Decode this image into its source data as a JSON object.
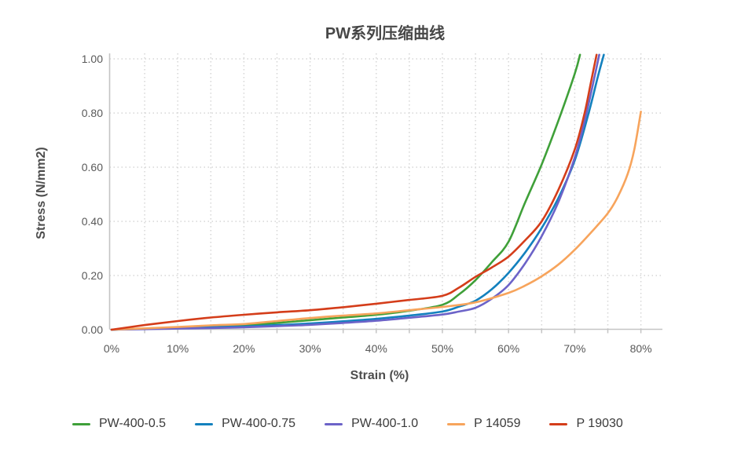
{
  "chart_data": {
    "type": "line",
    "title": "PW系列压缩曲线",
    "xlabel": "Strain (%)",
    "ylabel": "Stress (N/mm2)",
    "xlim": [
      0,
      80
    ],
    "ylim": [
      0,
      1.0
    ],
    "x_ticks": [
      "0%",
      "10%",
      "20%",
      "30%",
      "40%",
      "50%",
      "60%",
      "70%",
      "80%"
    ],
    "x_tick_values": [
      0,
      10,
      20,
      30,
      40,
      50,
      60,
      70,
      80
    ],
    "y_ticks": [
      "0.00",
      "0.20",
      "0.40",
      "0.60",
      "0.80",
      "1.00"
    ],
    "y_tick_values": [
      0,
      0.2,
      0.4,
      0.6,
      0.8,
      1.0
    ],
    "grid": {
      "style": "dotted",
      "x_step_pct": 5,
      "y_step": 0.2,
      "color": "#d6d6d6"
    },
    "axis_line_color": "#c4c4c4",
    "legend_position": "bottom",
    "series": [
      {
        "name": "PW-400-0.5",
        "color": "#3FA039",
        "x": [
          0,
          5,
          10,
          15,
          20,
          25,
          30,
          35,
          40,
          45,
          50,
          52.5,
          55,
          57.5,
          60,
          62.5,
          65,
          67.5,
          70,
          70.8
        ],
        "y": [
          0,
          0.004,
          0.009,
          0.012,
          0.016,
          0.025,
          0.035,
          0.045,
          0.055,
          0.07,
          0.092,
          0.13,
          0.183,
          0.25,
          0.325,
          0.47,
          0.61,
          0.77,
          0.945,
          1.015
        ]
      },
      {
        "name": "PW-400-0.75",
        "color": "#1381BE",
        "x": [
          0,
          5,
          10,
          15,
          20,
          25,
          30,
          35,
          40,
          45,
          50,
          52.5,
          55,
          57.5,
          60,
          62.5,
          65,
          67.5,
          70,
          72,
          73.5,
          74.4
        ],
        "y": [
          0,
          0.003,
          0.006,
          0.009,
          0.012,
          0.017,
          0.023,
          0.031,
          0.04,
          0.052,
          0.067,
          0.085,
          0.107,
          0.15,
          0.21,
          0.285,
          0.375,
          0.485,
          0.625,
          0.79,
          0.935,
          1.015
        ]
      },
      {
        "name": "PW-400-1.0",
        "color": "#6C63C8",
        "x": [
          0,
          5,
          10,
          15,
          20,
          25,
          30,
          35,
          40,
          45,
          50,
          52.5,
          55,
          57.5,
          60,
          62.5,
          65,
          67.5,
          70,
          71.5,
          73,
          73.7
        ],
        "y": [
          0,
          0.002,
          0.004,
          0.006,
          0.009,
          0.013,
          0.018,
          0.025,
          0.033,
          0.044,
          0.056,
          0.067,
          0.081,
          0.115,
          0.165,
          0.245,
          0.345,
          0.47,
          0.635,
          0.77,
          0.935,
          1.015
        ]
      },
      {
        "name": "P 14059",
        "color": "#F7A45C",
        "x": [
          0,
          5,
          10,
          15,
          20,
          25,
          30,
          35,
          40,
          45,
          50,
          55,
          60,
          62.5,
          65,
          67.5,
          70,
          72.5,
          75,
          76.5,
          78,
          79,
          80
        ],
        "y": [
          0,
          0.005,
          0.01,
          0.016,
          0.021,
          0.032,
          0.043,
          0.052,
          0.06,
          0.072,
          0.084,
          0.101,
          0.136,
          0.163,
          0.197,
          0.24,
          0.295,
          0.36,
          0.43,
          0.49,
          0.575,
          0.665,
          0.805
        ]
      },
      {
        "name": "P 19030",
        "color": "#D43D1A",
        "x": [
          0,
          5,
          10,
          15,
          20,
          25,
          30,
          35,
          40,
          45,
          50,
          52.5,
          55,
          57.5,
          60,
          62.5,
          65,
          67.5,
          70,
          71.5,
          72.5,
          73.3
        ],
        "y": [
          0,
          0.017,
          0.032,
          0.045,
          0.055,
          0.064,
          0.072,
          0.083,
          0.096,
          0.11,
          0.125,
          0.155,
          0.195,
          0.23,
          0.27,
          0.33,
          0.4,
          0.515,
          0.665,
          0.8,
          0.92,
          1.015
        ]
      }
    ]
  }
}
